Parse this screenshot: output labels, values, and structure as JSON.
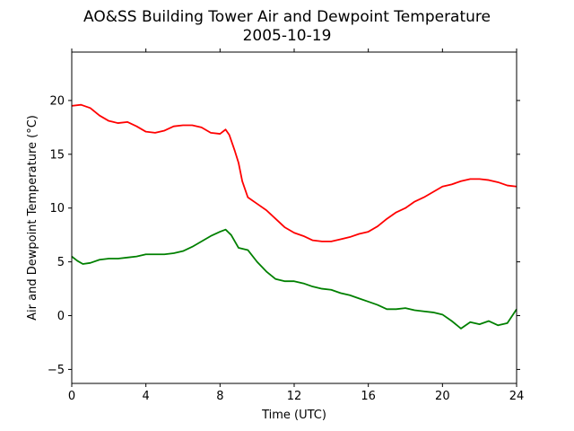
{
  "chart_data": {
    "type": "line",
    "title": "AO&SS Building Tower Air and Dewpoint Temperature",
    "subtitle": "2005-10-19",
    "xlabel": "Time (UTC)",
    "ylabel": "Air and Dewpoint Temperature (°C)",
    "xlim": [
      0,
      24
    ],
    "ylim": [
      -6.3,
      24.5
    ],
    "xticks": [
      0,
      4,
      8,
      12,
      16,
      20,
      24
    ],
    "yticks": [
      -5,
      0,
      5,
      10,
      15,
      20
    ],
    "ytick_labels": [
      "−5",
      "0",
      "5",
      "10",
      "15",
      "20"
    ],
    "grid": false,
    "legend": "none",
    "series": [
      {
        "color": "#ff0000",
        "x": [
          0,
          0.5,
          1,
          1.5,
          2,
          2.5,
          3,
          3.5,
          4,
          4.5,
          5,
          5.5,
          6,
          6.5,
          7,
          7.5,
          8,
          8.3,
          8.5,
          8.8,
          9,
          9.2,
          9.5,
          10,
          10.5,
          11,
          11.5,
          12,
          12.5,
          13,
          13.5,
          14,
          14.5,
          15,
          15.5,
          16,
          16.5,
          17,
          17.5,
          18,
          18.5,
          19,
          19.5,
          20,
          20.5,
          21,
          21.5,
          22,
          22.5,
          23,
          23.5,
          24
        ],
        "y": [
          19.5,
          19.6,
          19.3,
          18.6,
          18.1,
          17.9,
          18.0,
          17.6,
          17.1,
          17.0,
          17.2,
          17.6,
          17.7,
          17.7,
          17.5,
          17.0,
          16.9,
          17.3,
          16.8,
          15.3,
          14.2,
          12.5,
          11.0,
          10.4,
          9.8,
          9.0,
          8.2,
          7.7,
          7.4,
          7.0,
          6.9,
          6.9,
          7.1,
          7.3,
          7.6,
          7.8,
          8.3,
          9.0,
          9.6,
          10.0,
          10.6,
          11.0,
          11.5,
          12.0,
          12.2,
          12.5,
          12.7,
          12.7,
          12.6,
          12.4,
          12.1,
          12.0
        ]
      },
      {
        "color": "#008000",
        "x": [
          0,
          0.3,
          0.6,
          1,
          1.5,
          2,
          2.5,
          3,
          3.5,
          4,
          4.5,
          5,
          5.5,
          6,
          6.5,
          7,
          7.5,
          8,
          8.3,
          8.6,
          9,
          9.5,
          10,
          10.5,
          11,
          11.5,
          12,
          12.5,
          13,
          13.5,
          14,
          14.5,
          15,
          15.5,
          16,
          16.5,
          17,
          17.5,
          18,
          18.5,
          19,
          19.5,
          20,
          20.5,
          21,
          21.5,
          22,
          22.5,
          23,
          23.5,
          24
        ],
        "y": [
          5.5,
          5.1,
          4.8,
          4.9,
          5.2,
          5.3,
          5.3,
          5.4,
          5.5,
          5.7,
          5.7,
          5.7,
          5.8,
          6.0,
          6.4,
          6.9,
          7.4,
          7.8,
          8.0,
          7.5,
          6.3,
          6.1,
          5.0,
          4.1,
          3.4,
          3.2,
          3.2,
          3.0,
          2.7,
          2.5,
          2.4,
          2.1,
          1.9,
          1.6,
          1.3,
          1.0,
          0.6,
          0.6,
          0.7,
          0.5,
          0.4,
          0.3,
          0.1,
          -0.5,
          -1.2,
          -0.6,
          -0.8,
          -0.5,
          -0.9,
          -0.7,
          0.6
        ]
      }
    ]
  }
}
